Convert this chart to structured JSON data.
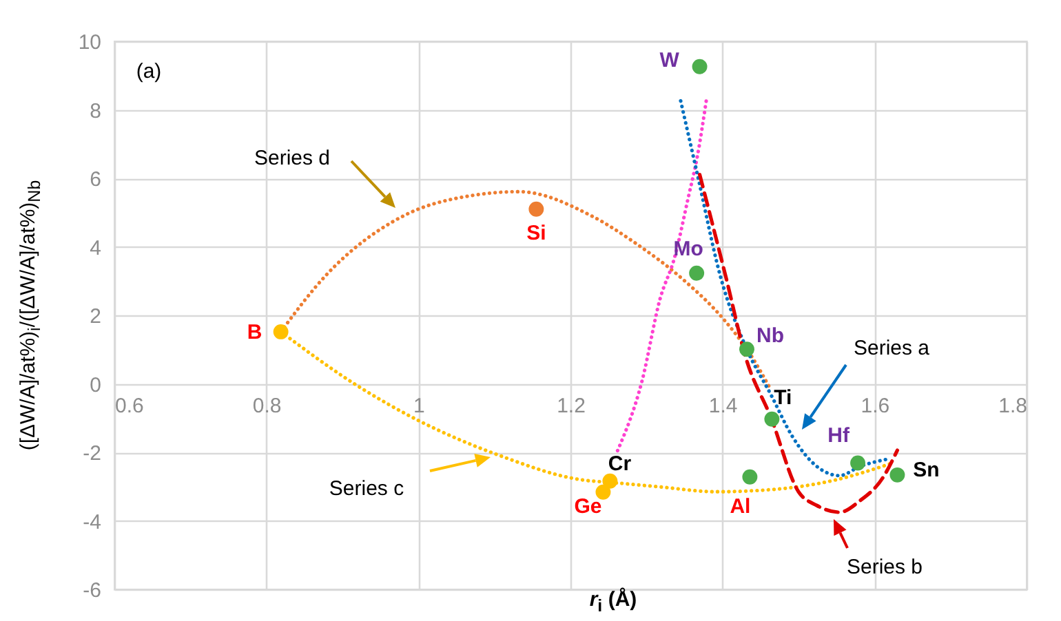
{
  "chart_data": {
    "type": "scatter",
    "xlabel": "r$_{i}$ (Å)",
    "ylabel": "([ΔW/A]/at%)$_{i}$/([ΔW/A]/at%)$_{Nb}$",
    "xlim": [
      0.6,
      1.8
    ],
    "ylim": [
      -6,
      10
    ],
    "xticks": [
      0.6,
      0.8,
      1,
      1.2,
      1.4,
      1.6,
      1.8
    ],
    "yticks": [
      -6,
      -4,
      -2,
      0,
      2,
      4,
      6,
      8,
      10
    ],
    "grid": true,
    "annotations": [
      "(a)",
      "Series d",
      "Series c",
      "Series a",
      "Series b"
    ],
    "series": [
      {
        "type": "line",
        "color": "#ed7d31",
        "line_style": "dotted",
        "x": [
          0.819,
          0.878,
          0.98,
          1.071,
          1.132,
          1.228,
          1.286,
          1.349,
          1.404,
          1.436,
          1.464
        ],
        "values": [
          1.52,
          3.16,
          4.9,
          5.5,
          5.61,
          4.9,
          4.1,
          3.03,
          1.82,
          0.88,
          -0.19
        ]
      },
      {
        "type": "line",
        "color": "#ffc000",
        "line_style": "dotted",
        "x": [
          0.819,
          0.92,
          1.0,
          1.104,
          1.217,
          1.254,
          1.318,
          1.391,
          1.469,
          1.548,
          1.62
        ],
        "values": [
          1.52,
          -0.06,
          -1.07,
          -2.07,
          -2.81,
          -2.88,
          -3.01,
          -3.15,
          -3.08,
          -2.81,
          -2.34
        ]
      },
      {
        "type": "line",
        "color": "#ff40d0",
        "line_style": "dotted",
        "x": [
          1.262,
          1.294,
          1.318,
          1.337,
          1.355,
          1.367,
          1.379
        ],
        "values": [
          -1.95,
          0.07,
          2.49,
          3.69,
          5.44,
          6.65,
          8.32
        ]
      },
      {
        "type": "line",
        "color": "#0070c0",
        "line_style": "dotted",
        "x": [
          1.345,
          1.367,
          1.397,
          1.432,
          1.464,
          1.492,
          1.524,
          1.554,
          1.581,
          1.617
        ],
        "values": [
          8.26,
          6.11,
          3.16,
          1.01,
          -0.33,
          -1.54,
          -2.41,
          -2.68,
          -2.41,
          -2.2
        ]
      },
      {
        "type": "line",
        "color": "#e00000",
        "line_style": "dashed",
        "x": [
          1.37,
          1.404,
          1.431,
          1.464,
          1.5,
          1.524,
          1.554,
          1.581,
          1.611,
          1.63
        ],
        "values": [
          6.11,
          3.16,
          0.74,
          -1.0,
          -3.15,
          -3.55,
          -3.75,
          -3.41,
          -2.74,
          -1.94
        ]
      },
      {
        "type": "scatter",
        "marker": "circle",
        "x": [
          0.819,
          1.155,
          1.243,
          1.252,
          1.436,
          1.366,
          1.37,
          1.432,
          1.465,
          1.578,
          1.63
        ],
        "values": [
          1.52,
          5.1,
          -3.16,
          -2.84,
          -2.72,
          3.23,
          9.26,
          1.01,
          -1.03,
          -2.31,
          -2.66
        ],
        "colors": [
          "#ffc000",
          "#ed7d31",
          "#ffc000",
          "#ffc000",
          "#4cae4c",
          "#4cae4c",
          "#4cae4c",
          "#4cae4c",
          "#4cae4c",
          "#4cae4c",
          "#4cae4c"
        ],
        "value_labels": [
          "B",
          "Si",
          "Ge",
          "Cr",
          "Al",
          "Mo",
          "W",
          "Nb",
          "Ti",
          "Hf",
          "Sn"
        ]
      }
    ]
  }
}
